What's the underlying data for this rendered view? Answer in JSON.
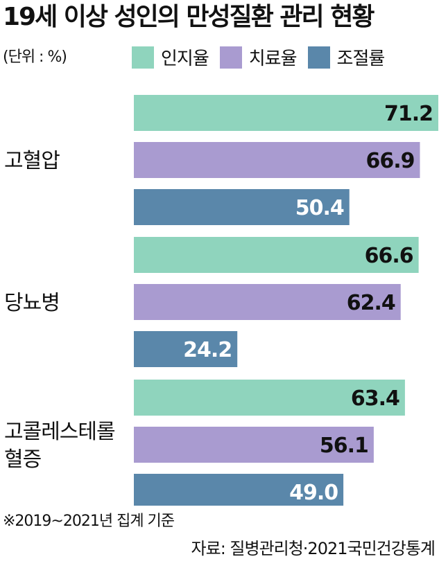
{
  "chart_data": {
    "type": "bar",
    "orientation": "horizontal",
    "title": "19세 이상 성인의 만성질환 관리 현황",
    "unit": "(단위 : %)",
    "categories": [
      [
        "고혈압"
      ],
      [
        "당뇨병"
      ],
      [
        "고콜레스테롤",
        "혈증"
      ]
    ],
    "series": [
      {
        "name": "인지율",
        "color": "#8fd4bd",
        "label_color": "#111111",
        "values": [
          71.2,
          66.6,
          63.4
        ]
      },
      {
        "name": "치료율",
        "color": "#a99bd0",
        "label_color": "#111111",
        "values": [
          66.9,
          62.4,
          56.1
        ]
      },
      {
        "name": "조절률",
        "color": "#5a87aa",
        "label_color": "#ffffff",
        "values": [
          50.4,
          24.2,
          49.0
        ]
      }
    ],
    "value_format": "0.0",
    "xlim": [
      0,
      71.2
    ],
    "legend_position": "top",
    "grid": false,
    "footnote": "※2019~2021년 집계 기준",
    "source": "자료: 질병관리청·2021국민건강통계"
  }
}
